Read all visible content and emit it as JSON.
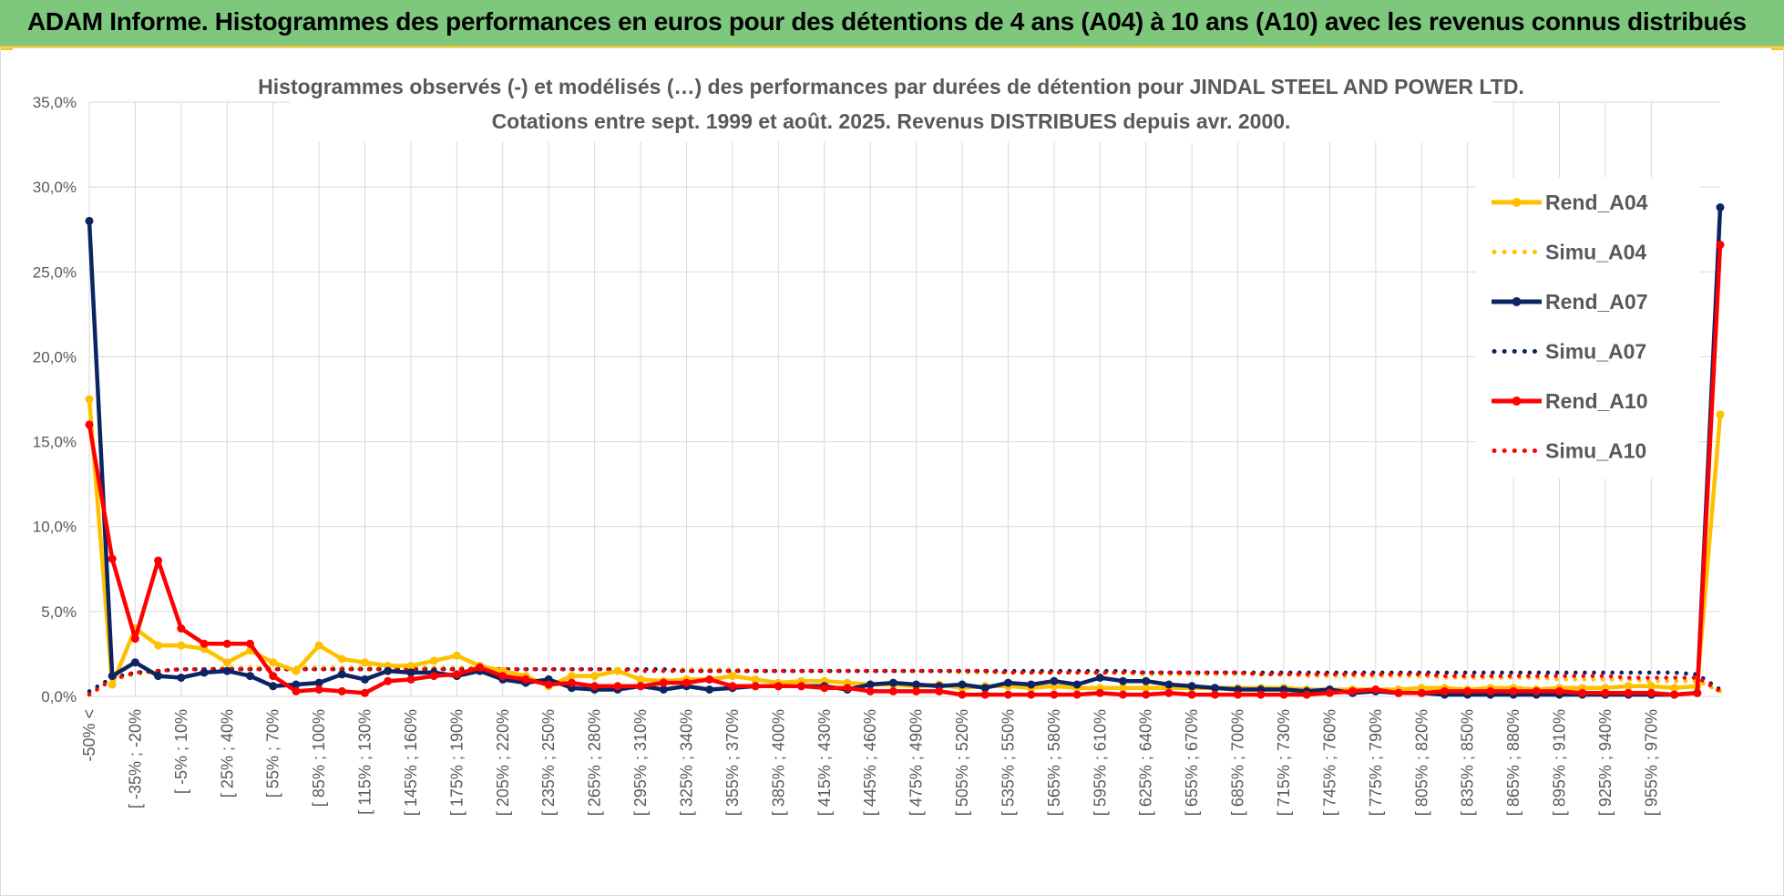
{
  "header": {
    "title": "ADAM Informe. Histogrammes des performances en euros pour des détentions de 4 ans (A04) à 10 ans (A10) avec les revenus connus distribués"
  },
  "colors": {
    "banner": "#7dc87d",
    "accent": "#f0c419",
    "A04": "#ffc000",
    "A07": "#0d2463",
    "A10": "#ff0000",
    "grid": "#d9d9d9",
    "text": "#595959"
  },
  "chart_data": {
    "type": "line",
    "title_lines": [
      "Histogrammes observés (-) et modélisés (…) des performances par durées de détention pour JINDAL STEEL AND POWER LTD.",
      "Cotations entre sept. 1999 et août. 2025. Revenus DISTRIBUES depuis avr. 2000."
    ],
    "ylim": [
      0,
      35
    ],
    "yticks": [
      "0,0%",
      "5,0%",
      "10,0%",
      "15,0%",
      "20,0%",
      "25,0%",
      "30,0%",
      "35,0%"
    ],
    "grid": true,
    "legend_position": "right",
    "x_category_count": 72,
    "x_tick_labels": [
      "-50% <",
      "[ -35% ; -20%",
      "[ -5% ; 10%",
      "[ 25% ; 40%",
      "[ 55% ; 70%",
      "[ 85% ; 100%",
      "[ 115% ; 130%",
      "[ 145% ; 160%",
      "[ 175% ; 190%",
      "[ 205% ; 220%",
      "[ 235% ; 250%",
      "[ 265% ; 280%",
      "[ 295% ; 310%",
      "[ 325% ; 340%",
      "[ 355% ; 370%",
      "[ 385% ; 400%",
      "[ 415% ; 430%",
      "[ 445% ; 460%",
      "[ 475% ; 490%",
      "[ 505% ; 520%",
      "[ 535% ; 550%",
      "[ 565% ; 580%",
      "[ 595% ; 610%",
      "[ 625% ; 640%",
      "[ 655% ; 670%",
      "[ 685% ; 700%",
      "[ 715% ; 730%",
      "[ 745% ; 760%",
      "[ 775% ; 790%",
      "[ 805% ; 820%",
      "[ 835% ; 850%",
      "[ 865% ; 880%",
      "[ 895% ; 910%",
      "[ 925% ; 940%",
      "[ 955% ; 970%"
    ],
    "series": [
      {
        "name": "Rend_A04",
        "style": "solid",
        "color": "#ffc000",
        "values": [
          17.5,
          0.7,
          4.0,
          3.0,
          3.0,
          2.8,
          2.0,
          2.7,
          2.0,
          1.5,
          3.0,
          2.2,
          2.0,
          1.8,
          1.8,
          2.1,
          2.4,
          1.8,
          1.5,
          1.2,
          0.6,
          1.2,
          1.2,
          1.5,
          1.0,
          0.9,
          1.0,
          1.0,
          1.2,
          1.0,
          0.8,
          0.9,
          0.9,
          0.8,
          0.7,
          0.7,
          0.6,
          0.7,
          0.5,
          0.6,
          0.6,
          0.5,
          0.6,
          0.5,
          0.5,
          0.5,
          0.5,
          0.5,
          0.5,
          0.5,
          0.5,
          0.5,
          0.5,
          0.4,
          0.4,
          0.4,
          0.4,
          0.4,
          0.5,
          0.5,
          0.4,
          0.5,
          0.5,
          0.4,
          0.5,
          0.5,
          0.5,
          0.6,
          0.6,
          0.5,
          0.6,
          16.6
        ]
      },
      {
        "name": "Simu_A04",
        "style": "dotted",
        "color": "#ffc000",
        "values": [
          0.2,
          1.0,
          1.3,
          1.5,
          1.6,
          1.6,
          1.7,
          1.7,
          1.7,
          1.7,
          1.7,
          1.7,
          1.7,
          1.7,
          1.7,
          1.7,
          1.7,
          1.7,
          1.6,
          1.6,
          1.6,
          1.6,
          1.6,
          1.6,
          1.6,
          1.6,
          1.6,
          1.6,
          1.6,
          1.5,
          1.5,
          1.5,
          1.5,
          1.5,
          1.5,
          1.5,
          1.5,
          1.5,
          1.4,
          1.4,
          1.4,
          1.4,
          1.4,
          1.4,
          1.4,
          1.4,
          1.3,
          1.3,
          1.3,
          1.3,
          1.3,
          1.3,
          1.3,
          1.2,
          1.2,
          1.2,
          1.2,
          1.2,
          1.2,
          1.1,
          1.1,
          1.1,
          1.1,
          1.1,
          1.0,
          1.0,
          1.0,
          1.0,
          0.9,
          0.9,
          0.9,
          0.3
        ]
      },
      {
        "name": "Rend_A07",
        "style": "solid",
        "color": "#0d2463",
        "values": [
          28.0,
          1.2,
          2.0,
          1.2,
          1.1,
          1.4,
          1.5,
          1.2,
          0.6,
          0.7,
          0.8,
          1.3,
          1.0,
          1.5,
          1.4,
          1.4,
          1.2,
          1.5,
          1.0,
          0.8,
          1.0,
          0.5,
          0.4,
          0.4,
          0.6,
          0.4,
          0.6,
          0.4,
          0.5,
          0.6,
          0.6,
          0.6,
          0.6,
          0.4,
          0.7,
          0.8,
          0.7,
          0.6,
          0.7,
          0.5,
          0.8,
          0.7,
          0.9,
          0.7,
          1.1,
          0.9,
          0.9,
          0.7,
          0.6,
          0.5,
          0.4,
          0.4,
          0.4,
          0.3,
          0.4,
          0.2,
          0.3,
          0.2,
          0.2,
          0.1,
          0.1,
          0.1,
          0.1,
          0.1,
          0.1,
          0.1,
          0.1,
          0.1,
          0.1,
          0.1,
          0.2,
          28.8
        ]
      },
      {
        "name": "Simu_A07",
        "style": "dotted",
        "color": "#0d2463",
        "values": [
          0.3,
          1.1,
          1.4,
          1.5,
          1.6,
          1.6,
          1.6,
          1.6,
          1.6,
          1.6,
          1.6,
          1.6,
          1.6,
          1.6,
          1.6,
          1.6,
          1.6,
          1.6,
          1.6,
          1.6,
          1.6,
          1.6,
          1.6,
          1.6,
          1.6,
          1.6,
          1.5,
          1.5,
          1.5,
          1.5,
          1.5,
          1.5,
          1.5,
          1.5,
          1.5,
          1.5,
          1.5,
          1.5,
          1.5,
          1.5,
          1.5,
          1.5,
          1.5,
          1.5,
          1.5,
          1.5,
          1.4,
          1.4,
          1.4,
          1.4,
          1.4,
          1.4,
          1.4,
          1.4,
          1.4,
          1.4,
          1.4,
          1.4,
          1.4,
          1.4,
          1.4,
          1.4,
          1.4,
          1.4,
          1.4,
          1.4,
          1.4,
          1.4,
          1.4,
          1.4,
          1.3,
          0.4
        ]
      },
      {
        "name": "Rend_A10",
        "style": "solid",
        "color": "#ff0000",
        "values": [
          16.0,
          8.1,
          3.4,
          8.0,
          4.0,
          3.1,
          3.1,
          3.1,
          1.2,
          0.3,
          0.4,
          0.3,
          0.2,
          0.9,
          1.0,
          1.2,
          1.3,
          1.7,
          1.2,
          1.0,
          0.7,
          0.8,
          0.6,
          0.6,
          0.6,
          0.8,
          0.8,
          1.0,
          0.6,
          0.6,
          0.6,
          0.6,
          0.5,
          0.5,
          0.3,
          0.3,
          0.3,
          0.3,
          0.1,
          0.1,
          0.1,
          0.1,
          0.1,
          0.1,
          0.2,
          0.1,
          0.1,
          0.2,
          0.1,
          0.1,
          0.1,
          0.1,
          0.1,
          0.1,
          0.2,
          0.3,
          0.4,
          0.2,
          0.2,
          0.3,
          0.3,
          0.3,
          0.3,
          0.3,
          0.3,
          0.2,
          0.2,
          0.2,
          0.2,
          0.1,
          0.2,
          26.6
        ]
      },
      {
        "name": "Simu_A10",
        "style": "dotted",
        "color": "#ff0000",
        "values": [
          0.1,
          1.0,
          1.4,
          1.5,
          1.6,
          1.6,
          1.6,
          1.6,
          1.6,
          1.6,
          1.6,
          1.6,
          1.6,
          1.6,
          1.6,
          1.6,
          1.6,
          1.6,
          1.6,
          1.6,
          1.6,
          1.6,
          1.6,
          1.6,
          1.5,
          1.5,
          1.5,
          1.5,
          1.5,
          1.5,
          1.5,
          1.5,
          1.5,
          1.5,
          1.5,
          1.5,
          1.5,
          1.5,
          1.5,
          1.5,
          1.4,
          1.4,
          1.4,
          1.4,
          1.4,
          1.4,
          1.4,
          1.4,
          1.4,
          1.4,
          1.4,
          1.3,
          1.3,
          1.3,
          1.3,
          1.3,
          1.3,
          1.3,
          1.3,
          1.2,
          1.2,
          1.2,
          1.2,
          1.2,
          1.2,
          1.2,
          1.2,
          1.1,
          1.1,
          1.1,
          1.1,
          0.3
        ]
      }
    ]
  }
}
